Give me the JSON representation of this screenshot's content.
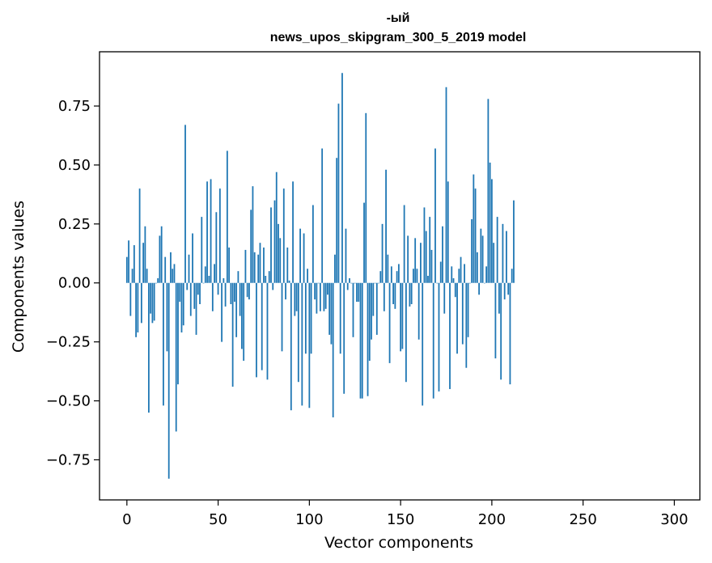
{
  "chart_data": {
    "type": "bar",
    "title_line1": "-ый",
    "title_line2": "news_upos_skipgram_300_5_2019 model",
    "xlabel": "Vector components",
    "ylabel": "Components values",
    "xlim": [
      -15,
      314
    ],
    "ylim": [
      -0.92,
      0.98
    ],
    "xticks": [
      0,
      50,
      100,
      150,
      200,
      250,
      300
    ],
    "yticks": [
      -0.75,
      -0.5,
      -0.25,
      0.0,
      0.25,
      0.5,
      0.75
    ],
    "xtick_labels": [
      "0",
      "50",
      "100",
      "150",
      "200",
      "250",
      "300"
    ],
    "ytick_labels": [
      "−0.75",
      "−0.50",
      "−0.25",
      "0.00",
      "0.25",
      "0.50",
      "0.75"
    ],
    "bar_color": "#1f77b4",
    "values": [
      0.11,
      0.18,
      -0.14,
      0.06,
      0.16,
      -0.23,
      -0.21,
      0.4,
      -0.17,
      0.17,
      0.24,
      0.06,
      -0.55,
      -0.13,
      -0.17,
      -0.16,
      0.0,
      0.02,
      0.2,
      0.24,
      -0.52,
      0.11,
      -0.29,
      -0.83,
      0.13,
      0.06,
      0.08,
      -0.63,
      -0.43,
      -0.08,
      -0.21,
      -0.18,
      0.67,
      -0.03,
      0.12,
      -0.14,
      0.21,
      -0.11,
      -0.22,
      -0.05,
      -0.09,
      0.28,
      0.0,
      0.07,
      0.43,
      0.03,
      0.44,
      -0.12,
      0.08,
      0.3,
      -0.05,
      0.4,
      -0.25,
      0.02,
      -0.1,
      0.56,
      0.15,
      -0.09,
      -0.44,
      -0.08,
      -0.23,
      0.05,
      -0.14,
      -0.28,
      -0.33,
      0.14,
      -0.06,
      -0.07,
      0.31,
      0.41,
      0.13,
      -0.4,
      0.12,
      0.17,
      -0.37,
      0.15,
      0.03,
      -0.41,
      0.05,
      0.32,
      -0.03,
      0.35,
      0.47,
      0.25,
      0.19,
      -0.29,
      0.4,
      -0.07,
      0.15,
      0.01,
      -0.54,
      0.43,
      -0.14,
      -0.12,
      -0.42,
      0.23,
      -0.52,
      0.21,
      -0.3,
      0.06,
      -0.53,
      -0.3,
      0.33,
      -0.07,
      -0.13,
      0.0,
      -0.12,
      0.57,
      -0.12,
      -0.11,
      -0.05,
      -0.22,
      -0.26,
      -0.57,
      0.12,
      0.53,
      0.76,
      -0.3,
      0.89,
      -0.47,
      0.23,
      -0.03,
      0.02,
      0.0,
      -0.23,
      0.0,
      -0.08,
      -0.08,
      -0.49,
      -0.49,
      0.34,
      0.72,
      -0.48,
      -0.33,
      -0.24,
      -0.14,
      0.0,
      -0.22,
      0.0,
      0.05,
      0.25,
      -0.12,
      0.48,
      0.12,
      -0.34,
      0.07,
      -0.09,
      -0.11,
      0.05,
      0.08,
      -0.29,
      -0.28,
      0.33,
      -0.42,
      0.2,
      -0.1,
      -0.09,
      0.06,
      0.19,
      0.06,
      -0.24,
      0.17,
      -0.52,
      0.32,
      0.22,
      0.03,
      0.28,
      0.14,
      -0.49,
      0.57,
      0.0,
      -0.46,
      0.09,
      0.24,
      -0.13,
      0.83,
      0.43,
      -0.45,
      0.07,
      0.02,
      -0.06,
      -0.3,
      0.06,
      0.11,
      -0.26,
      0.08,
      -0.36,
      -0.23,
      0.0,
      0.27,
      0.46,
      0.4,
      0.13,
      -0.05,
      0.23,
      0.2,
      0.0,
      0.07,
      0.78,
      0.51,
      0.44,
      0.17,
      -0.32,
      0.28,
      -0.13,
      -0.41,
      0.25,
      -0.07,
      0.22,
      -0.05,
      -0.43,
      0.06,
      0.35
    ]
  }
}
